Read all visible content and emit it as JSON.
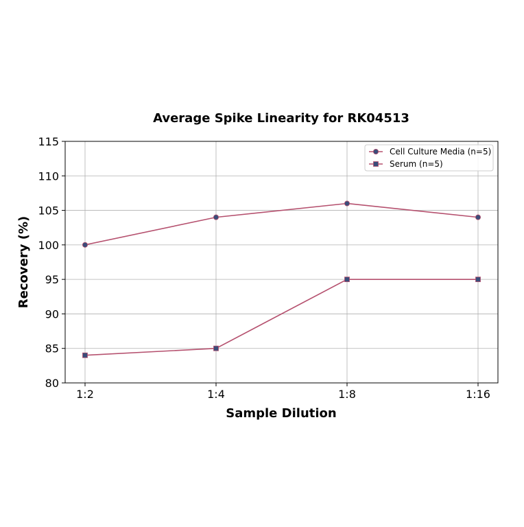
{
  "chart_data": {
    "type": "line",
    "title": "Average Spike Linearity for RK04513",
    "xlabel": "Sample Dilution",
    "ylabel": "Recovery (%)",
    "categories": [
      "1:2",
      "1:4",
      "1:8",
      "1:16"
    ],
    "ylim": [
      80,
      115
    ],
    "yticks": [
      80,
      85,
      90,
      95,
      100,
      105,
      110,
      115
    ],
    "grid": true,
    "legend_position": "top-right",
    "series": [
      {
        "name": "Cell Culture Media (n=5)",
        "values": [
          100,
          104,
          106,
          104
        ],
        "marker": "circle",
        "line_color": "#b5506e",
        "marker_color": "#3a4d7a"
      },
      {
        "name": "Serum (n=5)",
        "values": [
          84,
          85,
          95,
          95
        ],
        "marker": "square",
        "line_color": "#b5506e",
        "marker_color": "#3a4d7a"
      }
    ]
  }
}
